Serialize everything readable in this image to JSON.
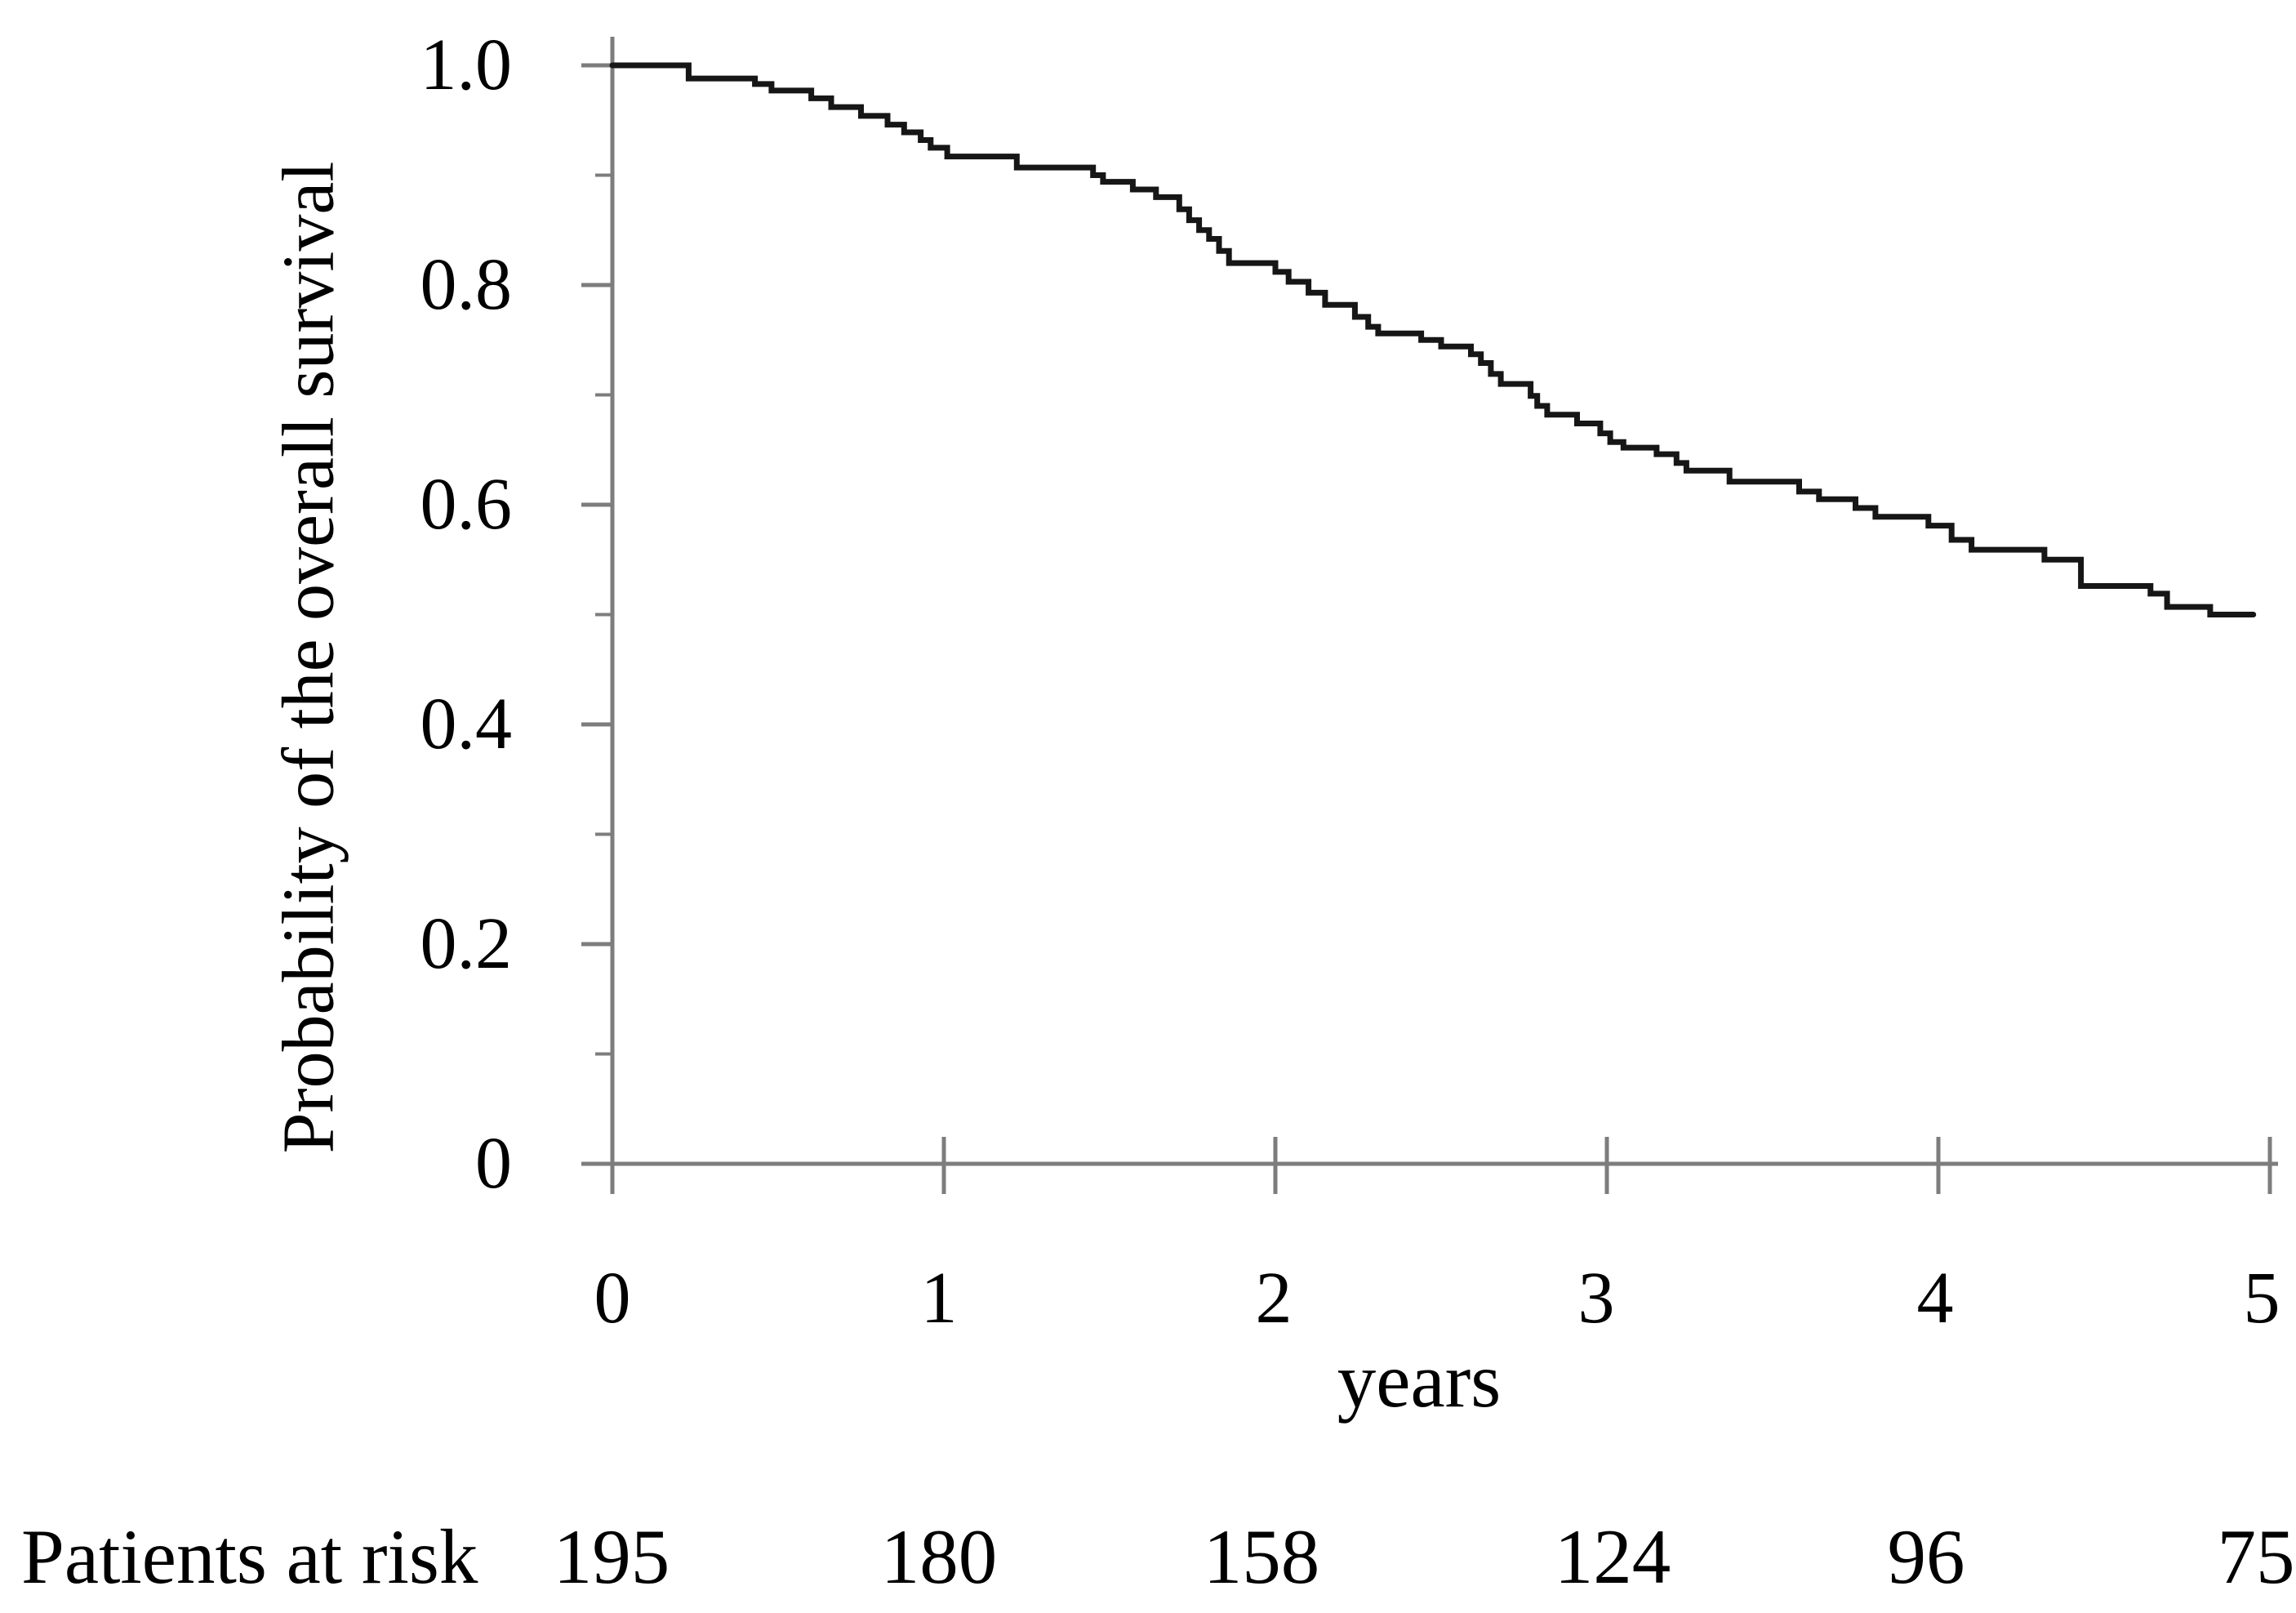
{
  "figure": {
    "background": "#ffffff",
    "axis_color": "#7d7d7d",
    "curve_color": "#161616",
    "text_color": "#000000"
  },
  "chart_data": {
    "type": "line",
    "subtype": "kaplan-meier-step-curve",
    "title": "",
    "xlabel": "years",
    "ylabel": "Probability of the overall survival",
    "xlim": [
      0,
      5
    ],
    "ylim": [
      0,
      1.0
    ],
    "grid": false,
    "legend": false,
    "x_ticks": [
      0,
      1,
      2,
      3,
      4,
      5
    ],
    "x_tick_labels": [
      "0",
      "1",
      "2",
      "3",
      "4",
      "5"
    ],
    "y_ticks": [
      1.0,
      0.8,
      0.6,
      0.4,
      0.2,
      0
    ],
    "y_tick_labels": [
      "1.0",
      "0.8",
      "0.6",
      "0.4",
      "0.2",
      "0"
    ],
    "y_minor_ticks": [
      0.9,
      0.7,
      0.5,
      0.3,
      0.1
    ],
    "curve_end_t": 4.95,
    "series": [
      {
        "name": "Overall survival",
        "steps": [
          [
            0.0,
            1.0
          ],
          [
            0.23,
            0.988
          ],
          [
            0.43,
            0.983
          ],
          [
            0.48,
            0.977
          ],
          [
            0.6,
            0.97
          ],
          [
            0.66,
            0.962
          ],
          [
            0.75,
            0.954
          ],
          [
            0.83,
            0.946
          ],
          [
            0.88,
            0.939
          ],
          [
            0.93,
            0.932
          ],
          [
            0.96,
            0.925
          ],
          [
            1.01,
            0.917
          ],
          [
            1.22,
            0.907
          ],
          [
            1.45,
            0.9
          ],
          [
            1.48,
            0.894
          ],
          [
            1.57,
            0.887
          ],
          [
            1.64,
            0.88
          ],
          [
            1.71,
            0.869
          ],
          [
            1.74,
            0.859
          ],
          [
            1.77,
            0.85
          ],
          [
            1.8,
            0.842
          ],
          [
            1.83,
            0.831
          ],
          [
            1.86,
            0.82
          ],
          [
            2.0,
            0.812
          ],
          [
            2.04,
            0.803
          ],
          [
            2.1,
            0.793
          ],
          [
            2.15,
            0.782
          ],
          [
            2.24,
            0.771
          ],
          [
            2.28,
            0.762
          ],
          [
            2.31,
            0.756
          ],
          [
            2.44,
            0.75
          ],
          [
            2.5,
            0.744
          ],
          [
            2.59,
            0.737
          ],
          [
            2.62,
            0.729
          ],
          [
            2.65,
            0.719
          ],
          [
            2.68,
            0.71
          ],
          [
            2.77,
            0.699
          ],
          [
            2.79,
            0.69
          ],
          [
            2.82,
            0.682
          ],
          [
            2.91,
            0.674
          ],
          [
            2.98,
            0.665
          ],
          [
            3.01,
            0.657
          ],
          [
            3.05,
            0.652
          ],
          [
            3.15,
            0.646
          ],
          [
            3.21,
            0.638
          ],
          [
            3.24,
            0.631
          ],
          [
            3.37,
            0.621
          ],
          [
            3.58,
            0.612
          ],
          [
            3.64,
            0.605
          ],
          [
            3.75,
            0.597
          ],
          [
            3.81,
            0.589
          ],
          [
            3.97,
            0.581
          ],
          [
            4.04,
            0.568
          ],
          [
            4.1,
            0.559
          ],
          [
            4.32,
            0.55
          ],
          [
            4.43,
            0.526
          ],
          [
            4.64,
            0.519
          ],
          [
            4.69,
            0.507
          ],
          [
            4.82,
            0.5
          ]
        ]
      }
    ]
  },
  "risk_table": {
    "label": "Patients at risk",
    "times": [
      0,
      1,
      2,
      3,
      4,
      5
    ],
    "counts": [
      "195",
      "180",
      "158",
      "124",
      "96",
      "75"
    ]
  }
}
